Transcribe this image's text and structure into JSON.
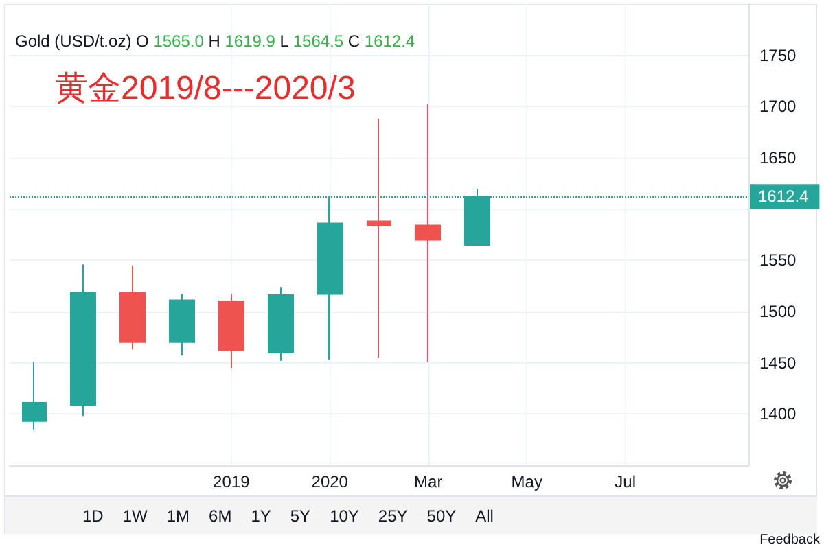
{
  "chart_data": {
    "type": "candlestick",
    "title": "Gold (USD/t.oz)",
    "subtitle": "O 1565.0 H 1619.9 L 1564.5 C 1612.4",
    "annotations": [
      "黄金2019/8---2020/3",
      "1D 1W 1M 6M 1Y 5Y 10Y 25Y 50Y All",
      "Feedback"
    ],
    "categories": [
      null,
      null,
      null,
      null,
      "2019",
      null,
      "2020",
      null,
      "Mar",
      null,
      "May",
      null,
      "Jul",
      null,
      null
    ],
    "ohlc": [
      [
        1393,
        1451,
        1385,
        1411
      ],
      [
        1409,
        1546,
        1398,
        1518
      ],
      [
        1518,
        1545,
        1463,
        1470
      ],
      [
        1470,
        1517,
        1457,
        1511
      ],
      [
        1510,
        1517,
        1445,
        1462
      ],
      [
        1460,
        1524,
        1452,
        1516
      ],
      [
        1517,
        1611,
        1453,
        1586
      ],
      [
        1588,
        1688,
        1455,
        1584
      ],
      [
        1584,
        1702,
        1451,
        1570
      ],
      [
        1565.0,
        1619.9,
        1564.5,
        1612.4
      ],
      null,
      null,
      null,
      null,
      null
    ],
    "colors": [
      "#26a69a",
      "#26a69a",
      "#ef5350",
      "#26a69a",
      "#ef5350",
      "#26a69a",
      "#26a69a",
      "#ef5350",
      "#ef5350",
      "#26a69a",
      null,
      null,
      null,
      null,
      null
    ],
    "ylim": [
      1350,
      1800
    ],
    "yticks": [
      1400,
      1450,
      1500,
      1550,
      {
        "value": 1600,
        "label": null
      },
      1650,
      1700,
      1750
    ],
    "grid": true,
    "ref_lines": [
      {
        "axis": "y",
        "value": 1612.4,
        "label": "1612.4",
        "color": "#26a69a",
        "line_style": "dotted"
      }
    ]
  }
}
